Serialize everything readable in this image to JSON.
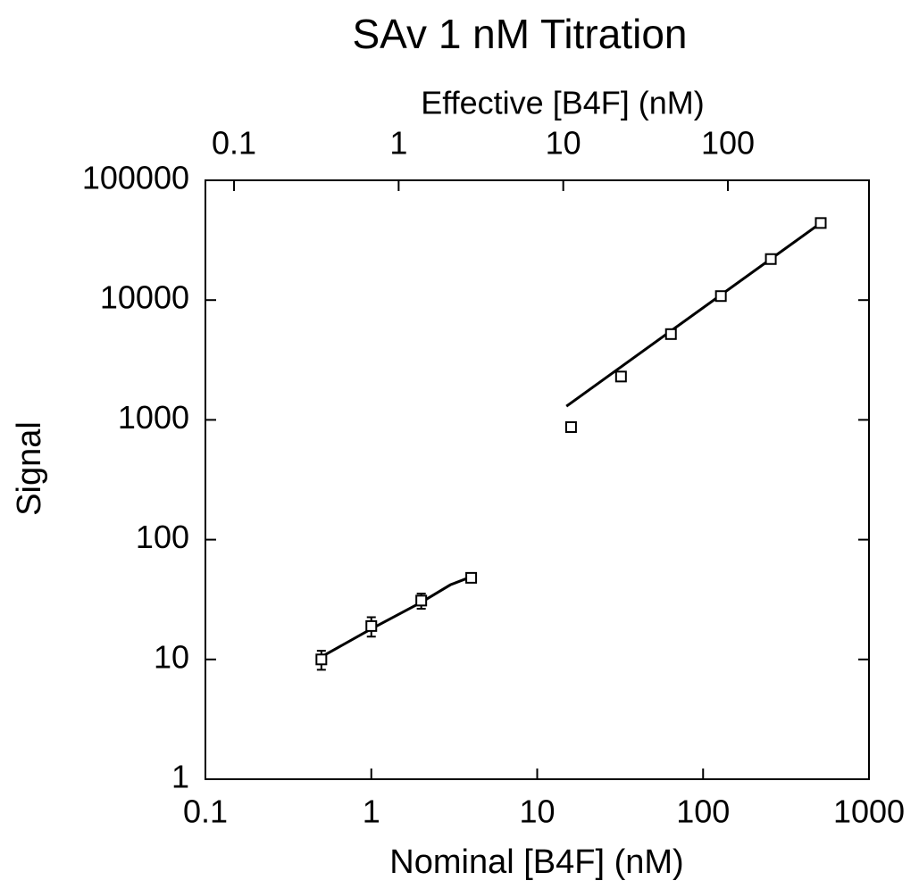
{
  "chart_data": {
    "type": "scatter",
    "title": "SAv 1 nM Titration",
    "xlabel": "Nominal [B4F] (nM)",
    "ylabel": "Signal",
    "x2label": "Effective [B4F] (nM)",
    "xscale": "log",
    "yscale": "log",
    "xlim": [
      0.1,
      1000
    ],
    "xticks": [
      0.1,
      1,
      10,
      100,
      1000
    ],
    "ylim": [
      1,
      100000
    ],
    "yticks": [
      1,
      10,
      100,
      1000,
      10000,
      100000
    ],
    "x2lim": [
      0.067,
      720
    ],
    "x2ticks": [
      0.1,
      1,
      10,
      100
    ],
    "series": [
      {
        "color": "#000000",
        "marker": "square",
        "x": [
          0.5,
          1,
          2,
          4,
          16,
          32,
          64,
          128,
          256,
          512
        ],
        "values": [
          10,
          19,
          31,
          48,
          870,
          2300,
          5200,
          10800,
          22000,
          44000
        ],
        "errors": [
          1.8,
          3.5,
          4.5,
          3,
          null,
          null,
          null,
          null,
          null,
          null
        ]
      }
    ],
    "fits": [
      {
        "color": "#000000",
        "x": [
          0.5,
          1,
          2,
          3,
          4
        ],
        "values": [
          10.5,
          18,
          30,
          42,
          49
        ]
      },
      {
        "color": "#000000",
        "x": [
          15,
          512
        ],
        "values": [
          1300,
          44000
        ]
      }
    ]
  }
}
